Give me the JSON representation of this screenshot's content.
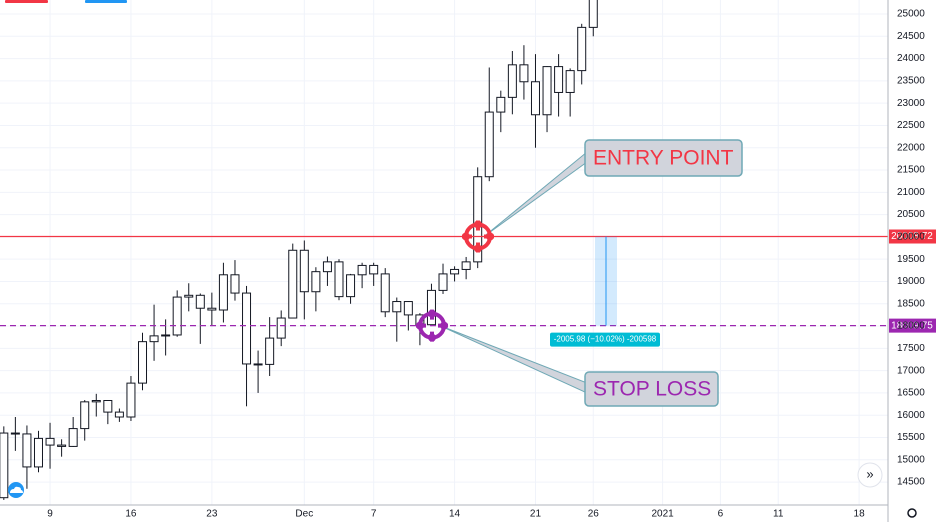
{
  "chart_data": {
    "type": "candlestick",
    "x": [
      5,
      6,
      7,
      8,
      9,
      10,
      11,
      12,
      13,
      14,
      15,
      16,
      17,
      18,
      19,
      20,
      21,
      22,
      23,
      24,
      25,
      26,
      27,
      28,
      29,
      30,
      31,
      32,
      33,
      34,
      35,
      36,
      37,
      38,
      39,
      40,
      41,
      42,
      43,
      44,
      45,
      46,
      47,
      48,
      49,
      50,
      51,
      52,
      53,
      54,
      55,
      56
    ],
    "open": [
      14150,
      15600,
      15580,
      14840,
      15480,
      15330,
      15300,
      15700,
      16300,
      16330,
      16070,
      15960,
      16720,
      17650,
      17780,
      17800,
      18650,
      18690,
      18400,
      18360,
      19150,
      18740,
      17150,
      17140,
      17730,
      18180,
      19700,
      18770,
      19220,
      19440,
      18660,
      19150,
      19360,
      19170,
      18320,
      18550,
      18250,
      18030,
      18800,
      19170,
      19270,
      19440,
      21350,
      22800,
      23130,
      23860,
      23480,
      22740,
      23820,
      23240,
      23730,
      24700
    ],
    "high": [
      15750,
      15960,
      15770,
      15650,
      15830,
      15460,
      15960,
      16340,
      16480,
      16330,
      16150,
      16880,
      17850,
      18480,
      18150,
      18800,
      18960,
      18730,
      18750,
      19420,
      19480,
      18900,
      17450,
      18200,
      18350,
      19850,
      19920,
      19320,
      19560,
      19500,
      19170,
      19420,
      19420,
      19300,
      18640,
      18560,
      18290,
      18950,
      19400,
      19340,
      19550,
      21560,
      23800,
      23280,
      24170,
      24300,
      24100,
      23830,
      24100,
      23780,
      24780,
      26850
    ],
    "low": [
      14100,
      15200,
      14350,
      14720,
      14800,
      15070,
      15290,
      15430,
      15970,
      15800,
      15850,
      15870,
      16560,
      17220,
      17340,
      17760,
      18330,
      17600,
      18000,
      18080,
      18570,
      16200,
      16500,
      16880,
      17550,
      18180,
      18150,
      18330,
      18900,
      18580,
      18500,
      18850,
      18900,
      18200,
      17650,
      17900,
      17570,
      18000,
      18720,
      19000,
      19050,
      19300,
      21250,
      22350,
      22750,
      23080,
      22000,
      22350,
      22700,
      22700,
      23420,
      24500
    ],
    "close": [
      15600,
      15580,
      14840,
      15480,
      15330,
      15300,
      15700,
      16300,
      16330,
      16070,
      15960,
      16720,
      17650,
      17780,
      17800,
      18650,
      18690,
      18400,
      18360,
      19150,
      18740,
      17150,
      17140,
      17730,
      18180,
      19700,
      18770,
      19220,
      19440,
      18660,
      19150,
      19360,
      19170,
      18320,
      18550,
      18250,
      18030,
      18800,
      19170,
      19270,
      19440,
      21350,
      22800,
      23130,
      23860,
      23480,
      22740,
      23820,
      23240,
      23730,
      24700,
      26450
    ],
    "xlim": [
      4.67,
      81.5
    ],
    "xticks": [
      {
        "value": 9,
        "label": "9"
      },
      {
        "value": 16,
        "label": "16"
      },
      {
        "value": 23,
        "label": "23"
      },
      {
        "value": 31,
        "label": "Dec"
      },
      {
        "value": 37,
        "label": "7"
      },
      {
        "value": 44,
        "label": "14"
      },
      {
        "value": 51,
        "label": "21"
      },
      {
        "value": 56,
        "label": "26"
      },
      {
        "value": 62,
        "label": "2021"
      },
      {
        "value": 67,
        "label": "6"
      },
      {
        "value": 72,
        "label": "11"
      },
      {
        "value": 79,
        "label": "18"
      }
    ],
    "ylim": [
      13986,
      25314
    ],
    "yticks": [
      14500,
      15000,
      15500,
      16000,
      16500,
      17000,
      17500,
      18000,
      18500,
      19000,
      19500,
      20000,
      20500,
      21000,
      21500,
      22000,
      22500,
      23000,
      23500,
      24000,
      24500,
      25000
    ],
    "grid": true,
    "hlines": [
      {
        "value": 20008.72,
        "color": "#f23645",
        "style": "solid"
      },
      {
        "value": 18009.75,
        "color": "#9c27b0",
        "style": "dashed"
      }
    ],
    "annotations": [
      "ENTRY POINT",
      "STOP LOSS"
    ],
    "measure_label": "-2005.98 (−10.02%) -200598"
  }
}
